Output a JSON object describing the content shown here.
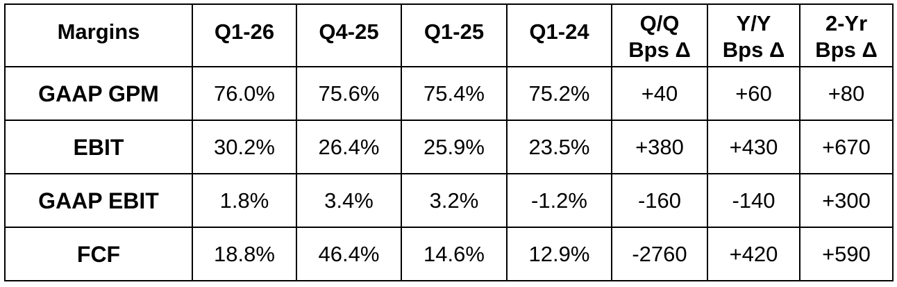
{
  "chart_data": {
    "type": "table",
    "columns": [
      "Margins",
      "Q1-26",
      "Q4-25",
      "Q1-25",
      "Q1-24",
      "Q/Q",
      "Y/Y",
      "2-Yr"
    ],
    "column_sublabels": [
      "",
      "",
      "",
      "",
      "",
      "Bps Δ",
      "Bps Δ",
      "Bps Δ"
    ],
    "rows": [
      {
        "label": "GAAP GPM",
        "values": [
          "76.0%",
          "75.6%",
          "75.4%",
          "75.2%",
          "+40",
          "+60",
          "+80"
        ]
      },
      {
        "label": "EBIT",
        "values": [
          "30.2%",
          "26.4%",
          "25.9%",
          "23.5%",
          "+380",
          "+430",
          "+670"
        ]
      },
      {
        "label": "GAAP EBIT",
        "values": [
          "1.8%",
          "3.4%",
          "3.2%",
          "-1.2%",
          "-160",
          "-140",
          "+300"
        ]
      },
      {
        "label": "FCF",
        "values": [
          "18.8%",
          "46.4%",
          "14.6%",
          "12.9%",
          "-2760",
          "+420",
          "+590"
        ]
      }
    ]
  }
}
